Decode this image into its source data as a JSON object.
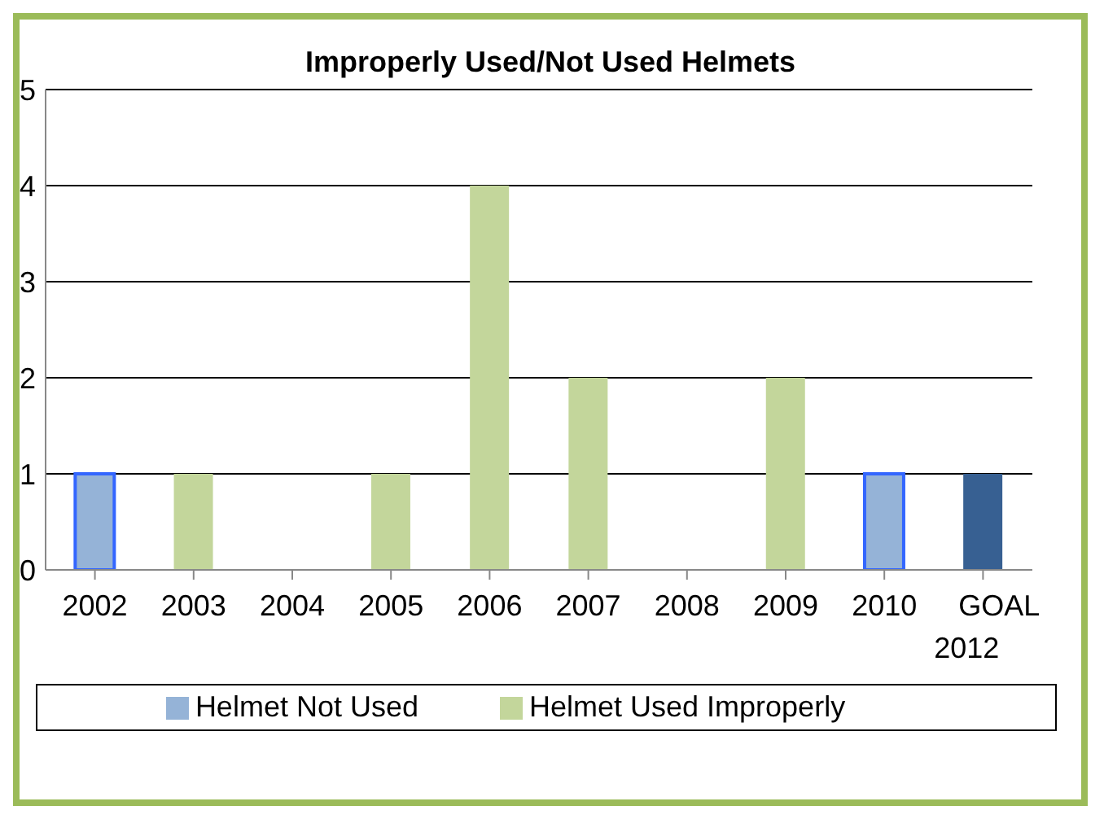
{
  "chart_data": {
    "type": "bar",
    "title": "Improperly Used/Not Used Helmets",
    "categories": [
      "2002",
      "2003",
      "2004",
      "2005",
      "2006",
      "2007",
      "2008",
      "2009",
      "2010",
      "GOAL 2012"
    ],
    "stacked": true,
    "series": [
      {
        "name": "Helmet Not Used",
        "color": "#95b3d7",
        "values": [
          1,
          null,
          null,
          null,
          null,
          null,
          null,
          null,
          1,
          null
        ]
      },
      {
        "name": "Helmet Used Improperly",
        "color": "#c3d69b",
        "values": [
          null,
          1,
          0,
          1,
          4,
          2,
          0,
          2,
          null,
          null
        ]
      },
      {
        "color": "#376092",
        "values": [
          null,
          null,
          null,
          null,
          null,
          null,
          null,
          null,
          null,
          1
        ]
      }
    ],
    "ylim": [
      0,
      5
    ],
    "yticks": [
      0,
      1,
      2,
      3,
      4,
      5
    ],
    "grid": "y",
    "legend": "bottom"
  }
}
